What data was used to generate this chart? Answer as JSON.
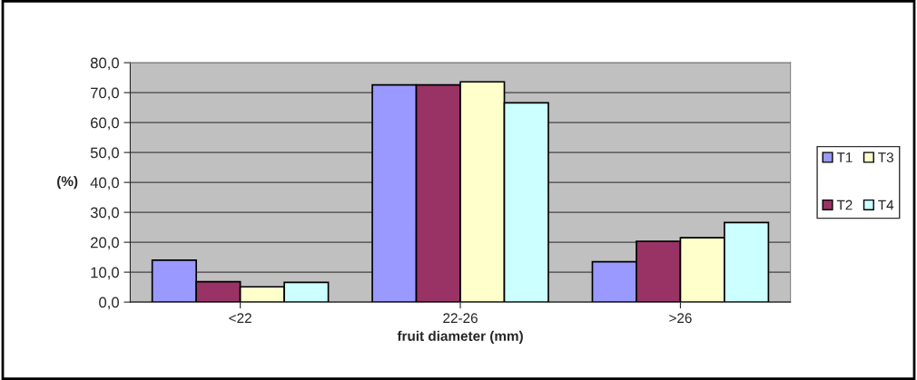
{
  "chart_data": {
    "type": "bar",
    "xlabel": "fruit diameter (mm)",
    "ylabel": "(%)",
    "categories": [
      "<22",
      "22-26",
      ">26"
    ],
    "series": [
      {
        "name": "T1",
        "color": "#9999ff",
        "values": [
          14.0,
          72.6,
          13.5
        ]
      },
      {
        "name": "T2",
        "color": "#993366",
        "values": [
          6.8,
          72.6,
          20.3
        ]
      },
      {
        "name": "T3",
        "color": "#ffffcc",
        "values": [
          5.1,
          73.6,
          21.5
        ]
      },
      {
        "name": "T4",
        "color": "#ccffff",
        "values": [
          6.6,
          66.6,
          26.6
        ]
      }
    ],
    "ylim": [
      0,
      80
    ],
    "yticks": [
      {
        "value": 0,
        "label": "0,0"
      },
      {
        "value": 10,
        "label": "10,0"
      },
      {
        "value": 20,
        "label": "20,0"
      },
      {
        "value": 30,
        "label": "30,0"
      },
      {
        "value": 40,
        "label": "40,0"
      },
      {
        "value": 50,
        "label": "50,0"
      },
      {
        "value": 60,
        "label": "60,0"
      },
      {
        "value": 70,
        "label": "70,0"
      },
      {
        "value": 80,
        "label": "80,0"
      }
    ],
    "grid": "y",
    "legend": "right"
  }
}
